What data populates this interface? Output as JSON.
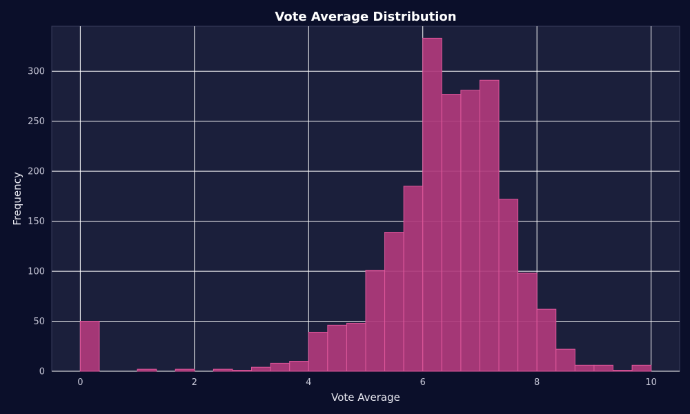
{
  "chart_data": {
    "type": "bar",
    "title": "Vote Average Distribution",
    "xlabel": "Vote Average",
    "ylabel": "Frequency",
    "xlim": [
      -0.5,
      10.5
    ],
    "ylim": [
      0,
      345
    ],
    "x_ticks": [
      0,
      2,
      4,
      6,
      8,
      10
    ],
    "y_ticks": [
      0,
      50,
      100,
      150,
      200,
      250,
      300
    ],
    "grid": true,
    "bin_width": 0.3333,
    "bin_edges": [
      0,
      0.3333,
      0.6667,
      1.0,
      1.3333,
      1.6667,
      2.0,
      2.3333,
      2.6667,
      3.0,
      3.3333,
      3.6667,
      4.0,
      4.3333,
      4.6667,
      5.0,
      5.3333,
      5.6667,
      6.0,
      6.3333,
      6.6667,
      7.0,
      7.3333,
      7.6667,
      8.0,
      8.3333,
      8.6667,
      9.0,
      9.3333,
      9.6667,
      10.0
    ],
    "values": [
      50,
      0,
      0,
      2,
      0,
      2,
      0,
      2,
      1,
      4,
      8,
      10,
      39,
      46,
      48,
      101,
      139,
      185,
      333,
      277,
      281,
      291,
      172,
      98,
      62,
      22,
      6,
      6,
      1,
      6
    ]
  },
  "colors": {
    "background": "#0b0f2a",
    "plot_area": "#1b1f3b",
    "bar_fill": "#b03a7c",
    "bar_edge": "#e0589c",
    "grid": "#ffffff",
    "frame": "#3a3e5c"
  }
}
